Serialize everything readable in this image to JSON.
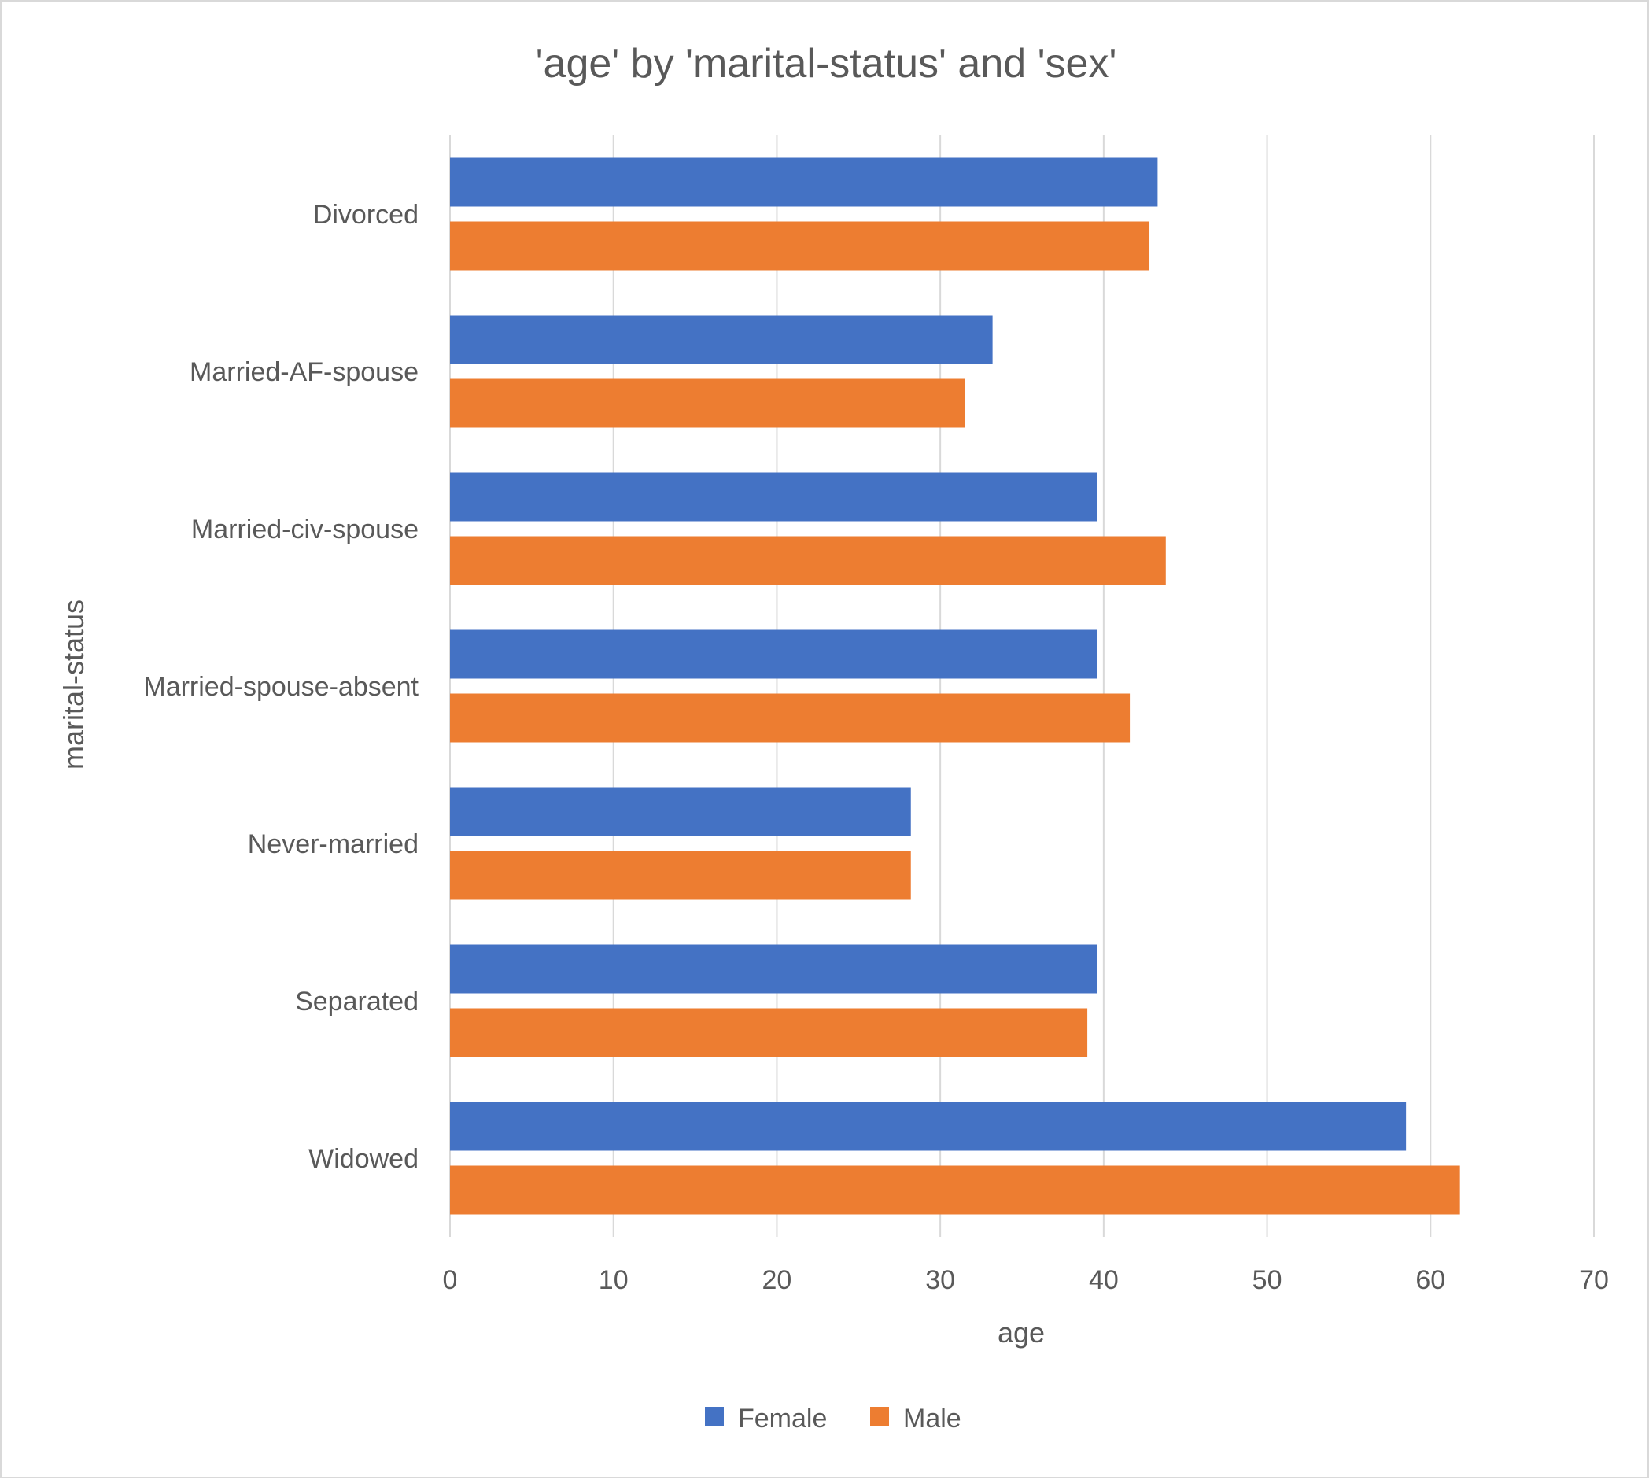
{
  "chart_data": {
    "type": "bar",
    "orientation": "horizontal",
    "title": "'age' by 'marital-status' and 'sex'",
    "xlabel": "age",
    "ylabel": "marital-status",
    "categories": [
      "Divorced",
      "Married-AF-spouse",
      "Married-civ-spouse",
      "Married-spouse-absent",
      "Never-married",
      "Separated",
      "Widowed"
    ],
    "series": [
      {
        "name": "Female",
        "color": "#4472C4",
        "values": [
          43.3,
          33.2,
          39.6,
          39.6,
          28.2,
          39.6,
          58.5
        ]
      },
      {
        "name": "Male",
        "color": "#ED7D31",
        "values": [
          42.8,
          31.5,
          43.8,
          41.6,
          28.2,
          39.0,
          61.8
        ]
      }
    ],
    "xlim": [
      0,
      70
    ],
    "xticks": [
      "0",
      "10",
      "20",
      "30",
      "40",
      "50",
      "60",
      "70"
    ],
    "grid": true,
    "legend_position": "bottom"
  }
}
